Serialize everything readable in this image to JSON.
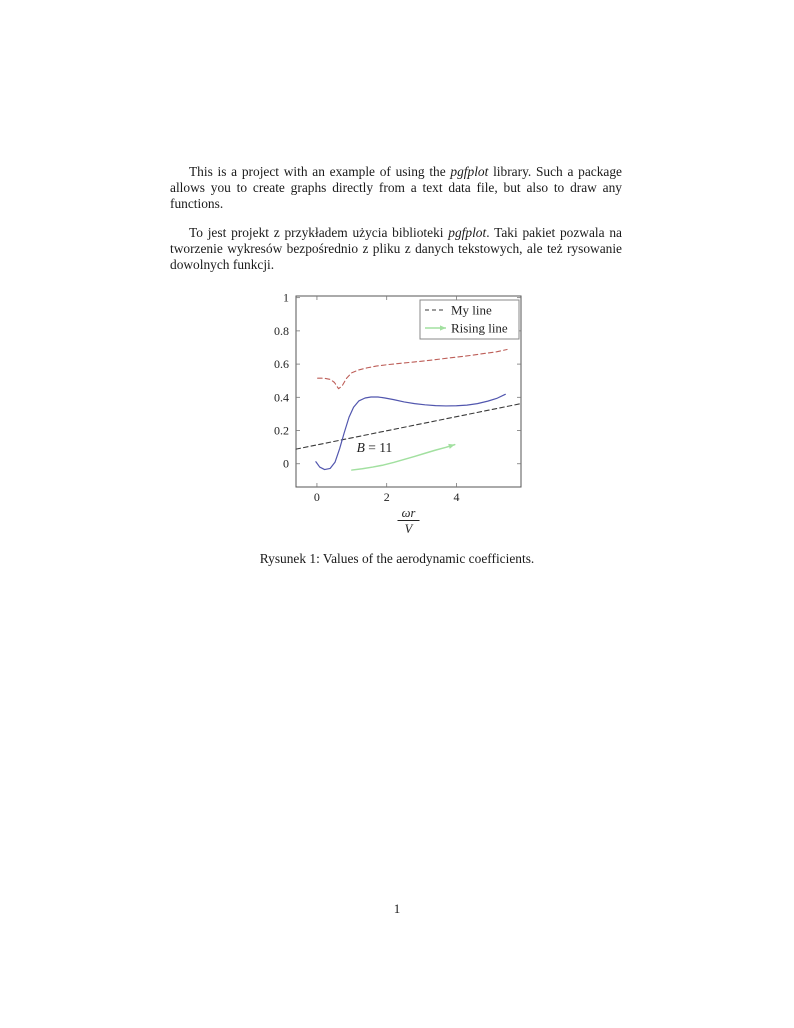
{
  "page": {
    "paragraph_en": {
      "part1": "This is a project with an example of using the ",
      "italic": "pgfplot",
      "part2": " library. Such a package allows you to create graphs directly from a text data file, but also to draw any functions."
    },
    "paragraph_pl": {
      "part1": "To jest projekt z przykładem użycia biblioteki ",
      "italic": "pgfplot",
      "part2": ". Taki pakiet pozwala na tworzenie wykresów bezpośrednio z pliku z danych tekstowych, ale też rysowanie dowolnych funkcji."
    },
    "caption": "Rysunek 1: Values of the aerodynamic coefficients.",
    "page_number": "1"
  },
  "chart_data": {
    "type": "line",
    "title": "",
    "xlabel_numerator": "ωr",
    "xlabel_denominator": "V",
    "ylabel": "",
    "xlim": [
      -0.6,
      5.85
    ],
    "ylim": [
      -0.14,
      1.01
    ],
    "xticks": [
      0,
      2,
      4
    ],
    "xtick_labels": [
      "0",
      "2",
      "4"
    ],
    "yticks": [
      0,
      0.2,
      0.4,
      0.6,
      0.8,
      1
    ],
    "ytick_labels": [
      "0",
      "0.2",
      "0.4",
      "0.6",
      "0.8",
      "1"
    ],
    "grid": false,
    "legend_position": "top-right",
    "annotation": {
      "text": "B = 11",
      "x": 1.65,
      "y": 0.095
    },
    "colors": {
      "axis": "#555555",
      "tick": "#777777",
      "my_line": "#3a3a3a",
      "red_line": "#bd5e58",
      "blue_line": "#5156ae",
      "rising_line": "#a2e0a0"
    },
    "series": [
      {
        "name": "My line",
        "in_legend": true,
        "style": "dashed",
        "color": "#3a3a3a",
        "width": 1.1,
        "points": [
          [
            -0.6,
            0.088
          ],
          [
            5.85,
            0.362
          ]
        ]
      },
      {
        "name": "red dashed",
        "in_legend": false,
        "style": "dashed",
        "color": "#bd5e58",
        "width": 1.1,
        "points": [
          [
            0.02,
            0.515
          ],
          [
            0.2,
            0.515
          ],
          [
            0.38,
            0.508
          ],
          [
            0.5,
            0.49
          ],
          [
            0.62,
            0.452
          ],
          [
            0.72,
            0.468
          ],
          [
            0.85,
            0.515
          ],
          [
            1.0,
            0.548
          ],
          [
            1.2,
            0.565
          ],
          [
            1.45,
            0.578
          ],
          [
            1.7,
            0.588
          ],
          [
            2.0,
            0.596
          ],
          [
            2.4,
            0.605
          ],
          [
            2.8,
            0.613
          ],
          [
            3.2,
            0.622
          ],
          [
            3.6,
            0.632
          ],
          [
            4.0,
            0.642
          ],
          [
            4.4,
            0.652
          ],
          [
            4.8,
            0.664
          ],
          [
            5.15,
            0.674
          ],
          [
            5.45,
            0.688
          ]
        ]
      },
      {
        "name": "blue solid",
        "in_legend": false,
        "style": "solid",
        "color": "#5156ae",
        "width": 1.2,
        "points": [
          [
            -0.03,
            0.012
          ],
          [
            0.08,
            -0.02
          ],
          [
            0.22,
            -0.035
          ],
          [
            0.38,
            -0.028
          ],
          [
            0.52,
            0.01
          ],
          [
            0.65,
            0.09
          ],
          [
            0.78,
            0.185
          ],
          [
            0.92,
            0.28
          ],
          [
            1.05,
            0.34
          ],
          [
            1.2,
            0.378
          ],
          [
            1.38,
            0.396
          ],
          [
            1.55,
            0.402
          ],
          [
            1.75,
            0.402
          ],
          [
            1.95,
            0.396
          ],
          [
            2.2,
            0.386
          ],
          [
            2.5,
            0.372
          ],
          [
            2.8,
            0.362
          ],
          [
            3.1,
            0.355
          ],
          [
            3.4,
            0.35
          ],
          [
            3.7,
            0.348
          ],
          [
            4.0,
            0.349
          ],
          [
            4.3,
            0.353
          ],
          [
            4.6,
            0.362
          ],
          [
            4.9,
            0.377
          ],
          [
            5.15,
            0.393
          ],
          [
            5.4,
            0.418
          ]
        ]
      },
      {
        "name": "Rising line",
        "in_legend": true,
        "style": "solid",
        "color": "#a2e0a0",
        "width": 1.5,
        "arrow_end": true,
        "points": [
          [
            1.0,
            -0.038
          ],
          [
            1.3,
            -0.03
          ],
          [
            1.6,
            -0.02
          ],
          [
            1.9,
            -0.008
          ],
          [
            2.2,
            0.008
          ],
          [
            2.5,
            0.026
          ],
          [
            2.8,
            0.044
          ],
          [
            3.1,
            0.063
          ],
          [
            3.4,
            0.082
          ],
          [
            3.7,
            0.099
          ],
          [
            3.95,
            0.115
          ]
        ]
      }
    ]
  }
}
